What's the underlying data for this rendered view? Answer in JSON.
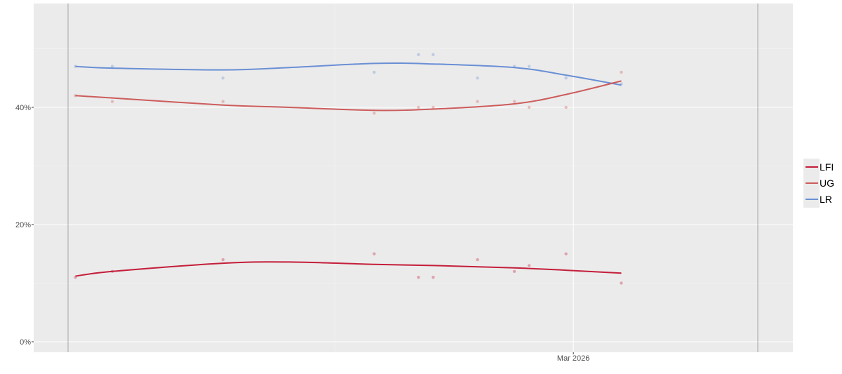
{
  "chart_data": {
    "type": "line",
    "title": "",
    "xlabel": "",
    "ylabel": "",
    "x_tick_labels": [
      "Mar 2026"
    ],
    "y_tick_labels": [
      "0%",
      "20%",
      "40%"
    ],
    "ylim": [
      0,
      58
    ],
    "xlim": [
      "2025-10-15",
      "2026-04-20"
    ],
    "grid": true,
    "legend_position": "right",
    "reference_lines_x": [
      "2025-10-15",
      "2026-04-20"
    ],
    "series": [
      {
        "name": "LFI",
        "color": "#c41e3a",
        "points": [
          {
            "date": "2025-10-17",
            "value": 11
          },
          {
            "date": "2025-10-27",
            "value": 12
          },
          {
            "date": "2025-11-26",
            "value": 14
          },
          {
            "date": "2026-01-06",
            "value": 15
          },
          {
            "date": "2026-01-18",
            "value": 11
          },
          {
            "date": "2026-01-22",
            "value": 11
          },
          {
            "date": "2026-02-03",
            "value": 14
          },
          {
            "date": "2026-02-13",
            "value": 12
          },
          {
            "date": "2026-02-17",
            "value": 13
          },
          {
            "date": "2026-02-27",
            "value": 15
          },
          {
            "date": "2026-03-14",
            "value": 10
          }
        ],
        "trend": [
          {
            "date": "2025-10-17",
            "value": 11.2
          },
          {
            "date": "2025-10-27",
            "value": 12.0
          },
          {
            "date": "2025-11-26",
            "value": 13.4
          },
          {
            "date": "2025-12-14",
            "value": 13.6
          },
          {
            "date": "2026-01-06",
            "value": 13.2
          },
          {
            "date": "2026-01-22",
            "value": 13.0
          },
          {
            "date": "2026-02-13",
            "value": 12.6
          },
          {
            "date": "2026-02-27",
            "value": 12.2
          },
          {
            "date": "2026-03-14",
            "value": 11.7
          }
        ]
      },
      {
        "name": "UG",
        "color": "#cd5c5c",
        "points": [
          {
            "date": "2025-10-17",
            "value": 42
          },
          {
            "date": "2025-10-27",
            "value": 41
          },
          {
            "date": "2025-11-26",
            "value": 41
          },
          {
            "date": "2026-01-06",
            "value": 39
          },
          {
            "date": "2026-01-18",
            "value": 40
          },
          {
            "date": "2026-01-22",
            "value": 40
          },
          {
            "date": "2026-02-03",
            "value": 41
          },
          {
            "date": "2026-02-13",
            "value": 41
          },
          {
            "date": "2026-02-17",
            "value": 40
          },
          {
            "date": "2026-02-27",
            "value": 40
          },
          {
            "date": "2026-03-14",
            "value": 46
          }
        ],
        "trend": [
          {
            "date": "2025-10-17",
            "value": 42.0
          },
          {
            "date": "2025-10-27",
            "value": 41.6
          },
          {
            "date": "2025-11-26",
            "value": 40.4
          },
          {
            "date": "2025-12-14",
            "value": 40.0
          },
          {
            "date": "2026-01-06",
            "value": 39.5
          },
          {
            "date": "2026-01-22",
            "value": 39.7
          },
          {
            "date": "2026-02-13",
            "value": 40.6
          },
          {
            "date": "2026-02-27",
            "value": 42.2
          },
          {
            "date": "2026-03-14",
            "value": 44.5
          }
        ]
      },
      {
        "name": "LR",
        "color": "#6a8fd5",
        "points": [
          {
            "date": "2025-10-17",
            "value": 47
          },
          {
            "date": "2025-10-27",
            "value": 47
          },
          {
            "date": "2025-11-26",
            "value": 45
          },
          {
            "date": "2026-01-06",
            "value": 46
          },
          {
            "date": "2026-01-18",
            "value": 49
          },
          {
            "date": "2026-01-22",
            "value": 49
          },
          {
            "date": "2026-02-03",
            "value": 45
          },
          {
            "date": "2026-02-13",
            "value": 47
          },
          {
            "date": "2026-02-17",
            "value": 47
          },
          {
            "date": "2026-02-27",
            "value": 45
          },
          {
            "date": "2026-03-14",
            "value": 44
          }
        ],
        "trend": [
          {
            "date": "2025-10-17",
            "value": 47.0
          },
          {
            "date": "2025-10-27",
            "value": 46.7
          },
          {
            "date": "2025-11-26",
            "value": 46.4
          },
          {
            "date": "2025-12-14",
            "value": 46.8
          },
          {
            "date": "2026-01-06",
            "value": 47.5
          },
          {
            "date": "2026-01-22",
            "value": 47.4
          },
          {
            "date": "2026-02-13",
            "value": 46.8
          },
          {
            "date": "2026-02-27",
            "value": 45.5
          },
          {
            "date": "2026-03-14",
            "value": 43.8
          }
        ]
      }
    ]
  }
}
